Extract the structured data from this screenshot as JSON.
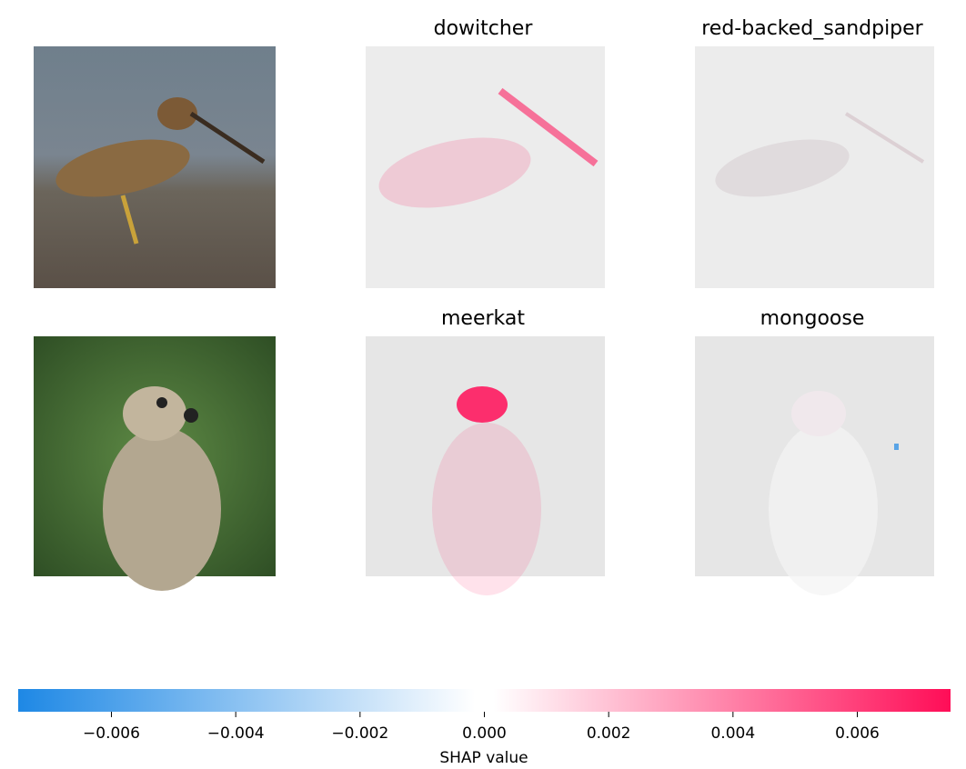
{
  "chart_data": {
    "type": "colorbar",
    "panels": [
      [
        "dowitcher",
        "red-backed_sandpiper"
      ],
      [
        "meerkat",
        "mongoose"
      ]
    ],
    "xlabel": "SHAP value",
    "xlim": [
      -0.0075,
      0.0075
    ],
    "xticks": [
      {
        "value": -0.006,
        "label": "−0.006"
      },
      {
        "value": -0.004,
        "label": "−0.004"
      },
      {
        "value": -0.002,
        "label": "−0.002"
      },
      {
        "value": 0,
        "label": "0.000"
      },
      0.002,
      0.004,
      0.006
    ],
    "colors": [
      "#1e88e5",
      "#ffffff",
      "#ff0d57"
    ]
  }
}
